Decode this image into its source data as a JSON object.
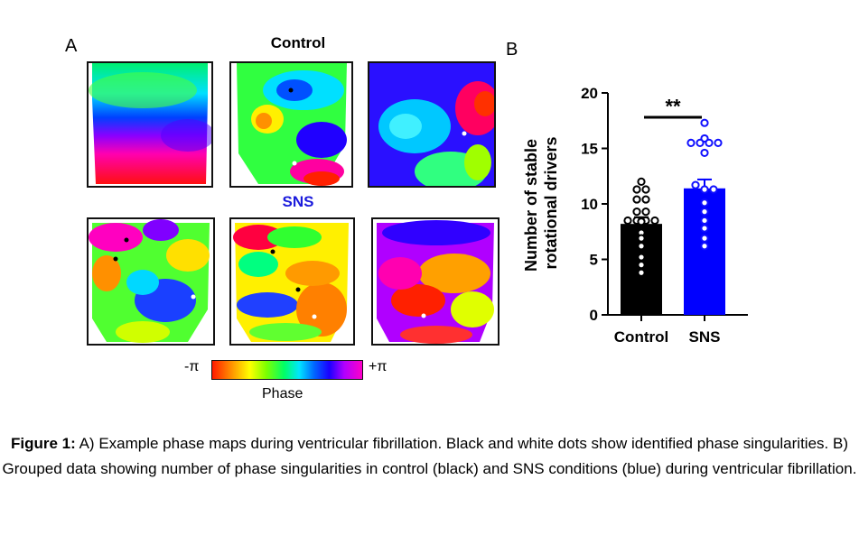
{
  "panel_a": {
    "letter": "A",
    "control_title": "Control",
    "sns_title": "SNS",
    "colorbar": {
      "min_label": "-π",
      "max_label": "+π",
      "title": "Phase"
    }
  },
  "panel_b": {
    "letter": "B"
  },
  "caption": {
    "bold": "Figure 1:",
    "text": " A) Example phase maps during ventricular fibrillation. Black and white dots show identified phase singularities. B) Grouped data showing number of phase singularities in control (black) and SNS conditions (blue) during ventricular fibrillation."
  },
  "colors": {
    "control": "#000000",
    "sns": "#0000ff",
    "sns_title": "#1a1adc"
  },
  "chart_data": {
    "type": "bar",
    "categories": [
      "Control",
      "SNS"
    ],
    "values": [
      8.2,
      11.4
    ],
    "errors": [
      0.6,
      0.8
    ],
    "ylabel": "Number of stable\nrotational drivers",
    "xlabel": "",
    "ylim": [
      0,
      20
    ],
    "yticks": [
      0,
      5,
      10,
      15,
      20
    ],
    "significance": "**",
    "points": [
      [
        12.0,
        11.3,
        11.3,
        10.4,
        10.4,
        9.3,
        9.3,
        8.5,
        8.5,
        8.5,
        8.5,
        8.4,
        7.4,
        6.9,
        6.2,
        5.2,
        4.5,
        3.8
      ],
      [
        17.3,
        15.9,
        15.5,
        15.5,
        15.5,
        15.5,
        14.6,
        11.7,
        11.3,
        11.3,
        10.1,
        9.3,
        8.5,
        7.8,
        6.9,
        6.2
      ]
    ],
    "bar_colors": [
      "#000000",
      "#0000ff"
    ]
  }
}
